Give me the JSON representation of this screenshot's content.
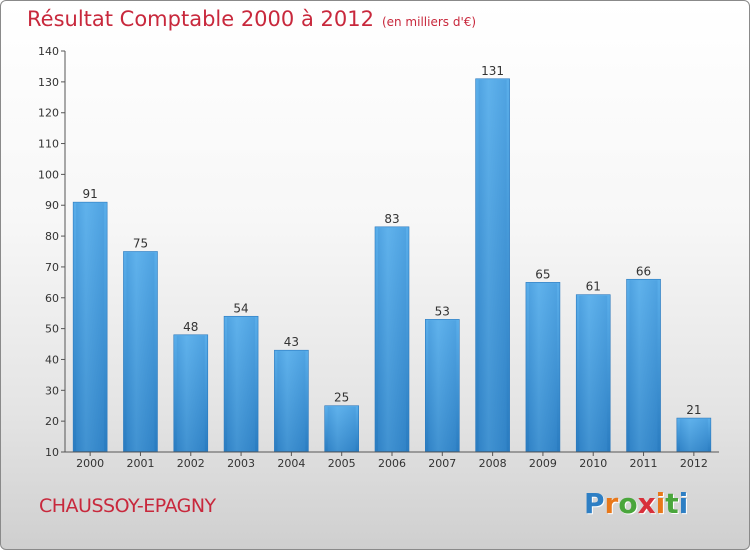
{
  "title": "Résultat Comptable 2000 à 2012",
  "subtitle": "(en milliers d'€)",
  "city": "CHAUSSOY-EPAGNY",
  "logo": {
    "letters": [
      "P",
      "r",
      "o",
      "x",
      "i",
      "t",
      "i"
    ],
    "colors": [
      "#2e7fc4",
      "#e8781a",
      "#4aa63c",
      "#d8303a",
      "#e8781a",
      "#4aa63c",
      "#2e7fc4"
    ]
  },
  "chart_data": {
    "type": "bar",
    "categories": [
      "2000",
      "2001",
      "2002",
      "2003",
      "2004",
      "2005",
      "2006",
      "2007",
      "2008",
      "2009",
      "2010",
      "2011",
      "2012"
    ],
    "values": [
      91,
      75,
      48,
      54,
      43,
      25,
      83,
      53,
      131,
      65,
      61,
      66,
      21
    ],
    "title": "Résultat Comptable 2000 à 2012",
    "subtitle": "(en milliers d'€)",
    "ylim": [
      10,
      140
    ],
    "yticks": [
      10,
      20,
      30,
      40,
      50,
      60,
      70,
      80,
      90,
      100,
      110,
      120,
      130,
      140
    ],
    "grid": false,
    "bar_color": "#4a9fe0",
    "data_labels": true
  }
}
